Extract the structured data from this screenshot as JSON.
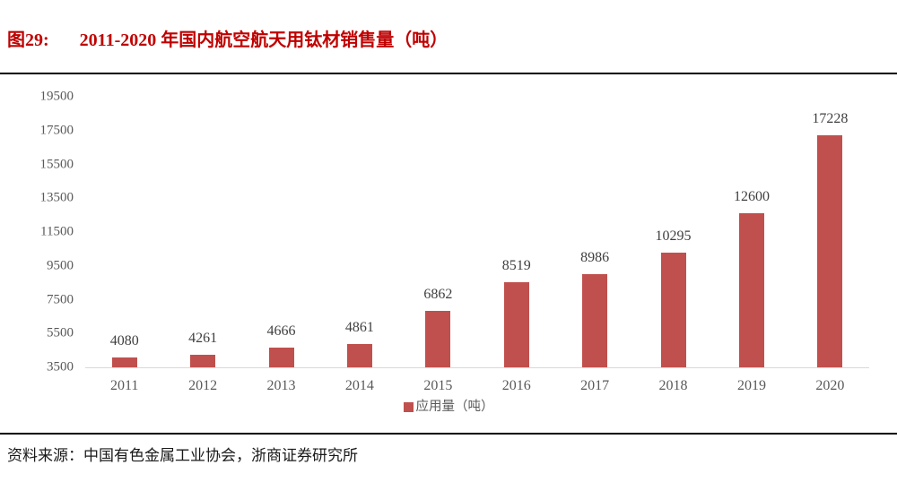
{
  "header": {
    "figure_label": "图29:",
    "title": "2011-2020 年国内航空航天用钛材销售量（吨）"
  },
  "chart_data": {
    "type": "bar",
    "title": "2011-2020 年国内航空航天用钛材销售量（吨）",
    "categories": [
      "2011",
      "2012",
      "2013",
      "2014",
      "2015",
      "2016",
      "2017",
      "2018",
      "2019",
      "2020"
    ],
    "values": [
      4080,
      4261,
      4666,
      4861,
      6862,
      8519,
      8986,
      10295,
      12600,
      17228
    ],
    "series_name": "应用量（吨）",
    "unit": "吨",
    "ylim": [
      3500,
      19500
    ],
    "ytick_step": 2000,
    "yticks": [
      3500,
      5500,
      7500,
      9500,
      11500,
      13500,
      15500,
      17500,
      19500
    ],
    "grid": false,
    "data_labels": true,
    "legend_position": "bottom"
  },
  "legend": {
    "label": "应用量（吨）"
  },
  "footer": {
    "source": "资料来源：中国有色金属工业协会，浙商证券研究所"
  },
  "colors": {
    "title_red": "#c00000",
    "bar_red": "#c0504d",
    "axis_text": "#595959",
    "value_label": "#3f3f3f",
    "baseline": "#d9d9d9",
    "rule": "#000000"
  }
}
